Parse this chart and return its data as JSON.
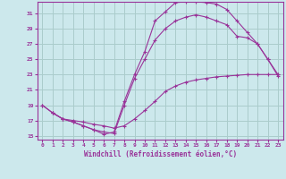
{
  "xlabel": "Windchill (Refroidissement éolien,°C)",
  "bg_color": "#cce8ec",
  "grid_color": "#aacccc",
  "line_color": "#993399",
  "xlim": [
    -0.5,
    23.5
  ],
  "ylim": [
    14.5,
    32.5
  ],
  "xticks": [
    0,
    1,
    2,
    3,
    4,
    5,
    6,
    7,
    8,
    9,
    10,
    11,
    12,
    13,
    14,
    15,
    16,
    17,
    18,
    19,
    20,
    21,
    22,
    23
  ],
  "yticks": [
    15,
    17,
    19,
    21,
    23,
    25,
    27,
    29,
    31
  ],
  "line1_x": [
    0,
    1,
    2,
    3,
    4,
    5,
    6,
    7,
    8,
    9,
    10,
    11,
    12,
    13,
    14,
    15,
    16,
    17,
    18,
    19,
    20,
    21,
    22,
    23
  ],
  "line1_y": [
    19.0,
    18.0,
    17.2,
    16.8,
    16.3,
    15.8,
    15.2,
    15.5,
    19.5,
    23.0,
    26.0,
    30.0,
    31.2,
    32.4,
    32.5,
    32.5,
    32.4,
    32.2,
    31.5,
    30.0,
    28.5,
    27.0,
    25.0,
    23.0
  ],
  "line2_x": [
    0,
    1,
    2,
    3,
    4,
    5,
    6,
    7,
    8,
    9,
    10,
    11,
    12,
    13,
    14,
    15,
    16,
    17,
    18,
    19,
    20,
    21,
    22,
    23
  ],
  "line2_y": [
    19.0,
    18.0,
    17.2,
    16.8,
    16.3,
    15.8,
    15.5,
    15.3,
    19.0,
    22.5,
    25.0,
    27.5,
    29.0,
    30.0,
    30.5,
    30.8,
    30.5,
    30.0,
    29.5,
    28.0,
    27.8,
    27.0,
    25.0,
    22.8
  ],
  "line3_x": [
    1,
    2,
    3,
    4,
    5,
    6,
    7,
    8,
    9,
    10,
    11,
    12,
    13,
    14,
    15,
    16,
    17,
    18,
    19,
    20,
    21,
    22,
    23
  ],
  "line3_y": [
    18.0,
    17.2,
    17.0,
    16.8,
    16.5,
    16.3,
    16.0,
    16.3,
    17.2,
    18.3,
    19.5,
    20.8,
    21.5,
    22.0,
    22.3,
    22.5,
    22.7,
    22.8,
    22.9,
    23.0,
    23.0,
    23.0,
    23.0
  ]
}
